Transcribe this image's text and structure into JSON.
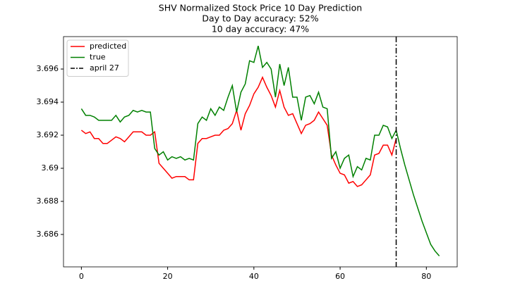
{
  "chart_data": {
    "type": "line",
    "title": "SHV Normalized Stock Price 10 Day Prediction",
    "subtitle": [
      "Day to Day accuracy: 52%",
      "10 day accuracy: 47%"
    ],
    "x": [
      0,
      1,
      2,
      3,
      4,
      5,
      6,
      7,
      8,
      9,
      10,
      11,
      12,
      13,
      14,
      15,
      16,
      17,
      18,
      19,
      20,
      21,
      22,
      23,
      24,
      25,
      26,
      27,
      28,
      29,
      30,
      31,
      32,
      33,
      34,
      35,
      36,
      37,
      38,
      39,
      40,
      41,
      42,
      43,
      44,
      45,
      46,
      47,
      48,
      49,
      50,
      51,
      52,
      53,
      54,
      55,
      56,
      57,
      58,
      59,
      60,
      61,
      62,
      63,
      64,
      65,
      66,
      67,
      68,
      69,
      70,
      71,
      72,
      73,
      74,
      75,
      76,
      77,
      78,
      79,
      80,
      81,
      82,
      83
    ],
    "series": [
      {
        "name": "predicted",
        "color": "#ff0000",
        "values": [
          3.6923,
          3.6921,
          3.6922,
          3.6918,
          3.6918,
          3.6915,
          3.6915,
          3.6917,
          3.6919,
          3.6918,
          3.6916,
          3.6919,
          3.6922,
          3.6922,
          3.6922,
          3.692,
          3.692,
          3.6922,
          3.6903,
          3.69,
          3.6897,
          3.6894,
          3.6895,
          3.6895,
          3.6895,
          3.6893,
          3.6893,
          3.6915,
          3.6918,
          3.6918,
          3.6919,
          3.692,
          3.692,
          3.6923,
          3.6924,
          3.6927,
          3.6935,
          3.6923,
          3.6933,
          3.6938,
          3.6945,
          3.6949,
          3.6955,
          3.6949,
          3.6944,
          3.6937,
          3.6947,
          3.6937,
          3.6932,
          3.6933,
          3.6927,
          3.6921,
          3.6926,
          3.6927,
          3.6929,
          3.6934,
          3.693,
          3.6926,
          3.6908,
          3.6902,
          3.6897,
          3.6896,
          3.6891,
          3.6892,
          3.6889,
          3.689,
          3.6893,
          3.6896,
          3.6908,
          3.6909,
          3.6914,
          3.6914,
          3.6908,
          3.6918,
          null,
          null,
          null,
          null,
          null,
          null,
          null,
          null,
          null,
          null
        ]
      },
      {
        "name": "true",
        "color": "#008000",
        "values": [
          3.6936,
          3.6932,
          3.6932,
          3.6931,
          3.6929,
          3.6929,
          3.6929,
          3.6929,
          3.6932,
          3.6928,
          3.6931,
          3.6932,
          3.6935,
          3.6934,
          3.6935,
          3.6934,
          3.6934,
          3.6912,
          3.6908,
          3.691,
          3.6905,
          3.6907,
          3.6906,
          3.6907,
          3.6905,
          3.6906,
          3.6905,
          3.6927,
          3.6931,
          3.6929,
          3.6936,
          3.6932,
          3.6937,
          3.6935,
          3.6943,
          3.695,
          3.6934,
          3.6946,
          3.6951,
          3.6965,
          3.6964,
          3.6974,
          3.6961,
          3.6964,
          3.696,
          3.6943,
          3.6963,
          3.695,
          3.6961,
          3.6943,
          3.6943,
          3.6929,
          3.6943,
          3.6944,
          3.6939,
          3.6946,
          3.6937,
          3.6936,
          3.6906,
          3.691,
          3.69,
          3.6906,
          3.6908,
          3.6895,
          3.6901,
          3.6899,
          3.6906,
          3.6905,
          3.692,
          3.692,
          3.6926,
          3.6925,
          3.6918,
          3.6923,
          3.6912,
          3.6902,
          3.6893,
          3.6884,
          3.6876,
          3.6868,
          3.6861,
          3.6854,
          3.685,
          3.6847
        ]
      }
    ],
    "vlines": [
      {
        "name": "april 27",
        "x": 73,
        "color": "#000000"
      }
    ],
    "xlim": [
      -4.15,
      87.15
    ],
    "xticks": [
      0,
      20,
      40,
      60,
      80
    ],
    "ylim": [
      3.68404,
      3.69796
    ],
    "yticks": [
      3.686,
      3.688,
      3.69,
      3.692,
      3.694,
      3.696
    ],
    "legend": "upper left"
  }
}
